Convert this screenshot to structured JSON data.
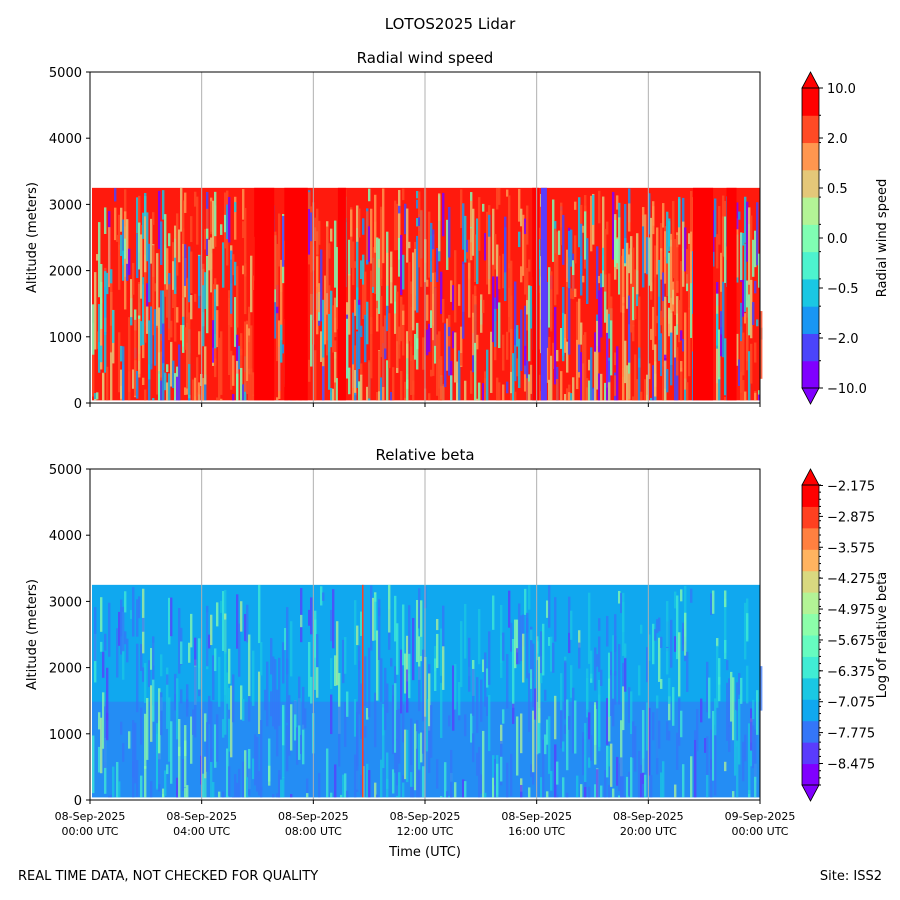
{
  "suptitle": "LOTOS2025 Lidar",
  "footer": {
    "left": "REAL TIME DATA, NOT CHECKED FOR QUALITY",
    "right": "Site: ISS2"
  },
  "chart_data": [
    {
      "type": "heatmap",
      "title": "Radial wind speed",
      "xlabel": "",
      "ylabel": "Altitude (meters)",
      "ylim": [
        0,
        5000
      ],
      "yticks": [
        "0",
        "1000",
        "2000",
        "3000",
        "4000",
        "5000"
      ],
      "xticks": [
        [
          "08-Sep-2025",
          "00:00 UTC"
        ],
        [
          "08-Sep-2025",
          "04:00 UTC"
        ],
        [
          "08-Sep-2025",
          "08:00 UTC"
        ],
        [
          "08-Sep-2025",
          "12:00 UTC"
        ],
        [
          "08-Sep-2025",
          "16:00 UTC"
        ],
        [
          "08-Sep-2025",
          "20:00 UTC"
        ],
        [
          "09-Sep-2025",
          "00:00 UTC"
        ]
      ],
      "show_xtick_labels": false,
      "x_range_hours": [
        0,
        24
      ],
      "grid": "vertical",
      "data_top_altitude": 3250,
      "colorbar": {
        "label": "Radial wind speed",
        "levels": [
          "-10.0",
          "-2.0",
          "-0.5",
          "0.0",
          "0.5",
          "2.0",
          "10.0"
        ],
        "colors": [
          "#8000ff",
          "#4a44fb",
          "#1996f3",
          "#1ac7e3",
          "#4df3ce",
          "#80feb3",
          "#b3f396",
          "#e4c779",
          "#ff964f",
          "#ff4a25",
          "#ff0000"
        ],
        "extend": "both"
      },
      "dominant_value": "red (> 2.0)"
    },
    {
      "type": "heatmap",
      "title": "Relative beta",
      "xlabel": "Time (UTC)",
      "ylabel": "Altitude (meters)",
      "ylim": [
        0,
        5000
      ],
      "yticks": [
        "0",
        "1000",
        "2000",
        "3000",
        "4000",
        "5000"
      ],
      "xticks": [
        [
          "08-Sep-2025",
          "00:00 UTC"
        ],
        [
          "08-Sep-2025",
          "04:00 UTC"
        ],
        [
          "08-Sep-2025",
          "08:00 UTC"
        ],
        [
          "08-Sep-2025",
          "12:00 UTC"
        ],
        [
          "08-Sep-2025",
          "16:00 UTC"
        ],
        [
          "08-Sep-2025",
          "20:00 UTC"
        ],
        [
          "09-Sep-2025",
          "00:00 UTC"
        ]
      ],
      "show_xtick_labels": true,
      "x_range_hours": [
        0,
        24
      ],
      "grid": "vertical",
      "data_top_altitude": 3250,
      "colorbar": {
        "label": "Log of relative beta",
        "levels": [
          "-2.175",
          "-2.875",
          "-3.575",
          "-4.275",
          "-4.975",
          "-5.675",
          "-6.375",
          "-7.075",
          "-7.775",
          "-8.475"
        ],
        "colors": [
          "#8000ff",
          "#5a3cfd",
          "#3476f8",
          "#10a8ef",
          "#1ac7e3",
          "#40ecd4",
          "#66fcc0",
          "#8cfeaa",
          "#b3f396",
          "#d9d980",
          "#ffb360",
          "#ff8040",
          "#ff4020",
          "#ff0000"
        ],
        "extend": "both"
      },
      "dominant_value": "about -7.4 (cyan-blue)"
    }
  ]
}
